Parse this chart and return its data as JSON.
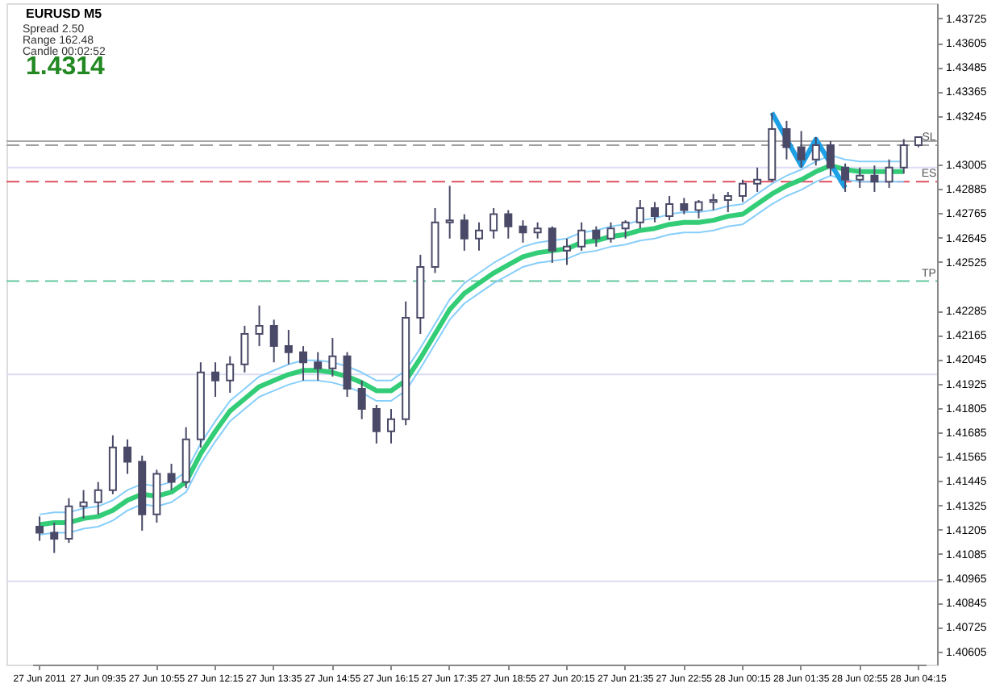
{
  "chart_data": {
    "type": "candlestick",
    "title": "EURUSD  M5",
    "annotations": [
      "Spread  2.50",
      "Range  162.48",
      "Candle  00:02:52",
      "1.4314"
    ],
    "categories": [
      "27 Jun 2011",
      null,
      null,
      null,
      "27 Jun 09:35",
      null,
      null,
      null,
      "27 Jun 10:55",
      null,
      null,
      null,
      "27 Jun 12:15",
      null,
      null,
      null,
      "27 Jun 13:35",
      null,
      null,
      null,
      "27 Jun 14:55",
      null,
      null,
      null,
      "27 Jun 16:15",
      null,
      null,
      null,
      "27 Jun 17:35",
      null,
      null,
      null,
      "27 Jun 18:55",
      null,
      null,
      null,
      "27 Jun 20:15",
      null,
      null,
      null,
      "27 Jun 21:35",
      null,
      null,
      null,
      "27 Jun 22:55",
      null,
      null,
      null,
      "28 Jun 00:15",
      null,
      null,
      null,
      "28 Jun 01:35",
      null,
      null,
      null,
      "28 Jun 02:55",
      null,
      null,
      null,
      "28 Jun 04:15"
    ],
    "series": [
      {
        "type": "candlestick",
        "color": "#4a4a68",
        "ohlc": [
          [
            1.4122,
            1.4127,
            1.4115,
            1.4119
          ],
          [
            1.4119,
            1.4124,
            1.4109,
            1.4116
          ],
          [
            1.4116,
            1.4136,
            1.4114,
            1.4132
          ],
          [
            1.4132,
            1.414,
            1.4126,
            1.4134
          ],
          [
            1.4134,
            1.4144,
            1.4128,
            1.414
          ],
          [
            1.414,
            1.4167,
            1.4138,
            1.4161
          ],
          [
            1.4161,
            1.4165,
            1.4148,
            1.4154
          ],
          [
            1.4154,
            1.4157,
            1.412,
            1.4128
          ],
          [
            1.4128,
            1.415,
            1.4124,
            1.4148
          ],
          [
            1.4148,
            1.4153,
            1.414,
            1.4144
          ],
          [
            1.4144,
            1.4171,
            1.4141,
            1.4165
          ],
          [
            1.4165,
            1.4203,
            1.4161,
            1.4198
          ],
          [
            1.4198,
            1.4203,
            1.4186,
            1.4194
          ],
          [
            1.4194,
            1.4206,
            1.4188,
            1.4202
          ],
          [
            1.4202,
            1.4221,
            1.4198,
            1.4217
          ],
          [
            1.4217,
            1.4231,
            1.4211,
            1.4221
          ],
          [
            1.4221,
            1.4224,
            1.4203,
            1.4211
          ],
          [
            1.4211,
            1.4219,
            1.4202,
            1.4208
          ],
          [
            1.4208,
            1.4211,
            1.4194,
            1.4203
          ],
          [
            1.4203,
            1.4208,
            1.4194,
            1.42
          ],
          [
            1.42,
            1.4215,
            1.4196,
            1.4206
          ],
          [
            1.4206,
            1.4208,
            1.4186,
            1.419
          ],
          [
            1.419,
            1.4194,
            1.4175,
            1.418
          ],
          [
            1.418,
            1.4182,
            1.4163,
            1.4169
          ],
          [
            1.4169,
            1.418,
            1.4163,
            1.4175
          ],
          [
            1.4175,
            1.4233,
            1.4172,
            1.4225
          ],
          [
            1.4225,
            1.4256,
            1.4217,
            1.425
          ],
          [
            1.425,
            1.4279,
            1.4247,
            1.4272
          ],
          [
            1.4272,
            1.429,
            1.4264,
            1.4273
          ],
          [
            1.4273,
            1.4276,
            1.4258,
            1.4264
          ],
          [
            1.4264,
            1.4272,
            1.4258,
            1.4268
          ],
          [
            1.4268,
            1.4279,
            1.4264,
            1.4276
          ],
          [
            1.4276,
            1.4278,
            1.4264,
            1.427
          ],
          [
            1.427,
            1.4273,
            1.4262,
            1.4267
          ],
          [
            1.4267,
            1.4272,
            1.4264,
            1.4269
          ],
          [
            1.4269,
            1.427,
            1.4252,
            1.4258
          ],
          [
            1.4258,
            1.4264,
            1.4251,
            1.426
          ],
          [
            1.426,
            1.4272,
            1.4258,
            1.4268
          ],
          [
            1.4268,
            1.427,
            1.426,
            1.4264
          ],
          [
            1.4264,
            1.4272,
            1.4262,
            1.4269
          ],
          [
            1.4269,
            1.4273,
            1.4264,
            1.4272
          ],
          [
            1.4272,
            1.4283,
            1.4269,
            1.4279
          ],
          [
            1.4279,
            1.4282,
            1.4272,
            1.4275
          ],
          [
            1.4275,
            1.4285,
            1.4273,
            1.4281
          ],
          [
            1.4281,
            1.4284,
            1.4276,
            1.4278
          ],
          [
            1.4278,
            1.4283,
            1.4274,
            1.4282
          ],
          [
            1.4282,
            1.4286,
            1.4278,
            1.4283
          ],
          [
            1.4283,
            1.4287,
            1.4277,
            1.4285
          ],
          [
            1.4285,
            1.4293,
            1.4282,
            1.4291
          ],
          [
            1.4291,
            1.4299,
            1.4287,
            1.4293
          ],
          [
            1.4293,
            1.4326,
            1.4292,
            1.4318
          ],
          [
            1.4318,
            1.4322,
            1.4303,
            1.4309
          ],
          [
            1.4309,
            1.4317,
            1.4299,
            1.4303
          ],
          [
            1.4303,
            1.4314,
            1.43,
            1.431
          ],
          [
            1.431,
            1.4312,
            1.4295,
            1.4299
          ],
          [
            1.4299,
            1.4301,
            1.4287,
            1.4293
          ],
          [
            1.4293,
            1.4299,
            1.4289,
            1.4295
          ],
          [
            1.4295,
            1.43,
            1.4287,
            1.4292
          ],
          [
            1.4292,
            1.4303,
            1.4289,
            1.4299
          ],
          [
            1.4299,
            1.4313,
            1.4296,
            1.431
          ],
          [
            1.431,
            1.4314,
            1.4309,
            1.4314
          ]
        ]
      },
      {
        "type": "line",
        "color": "#33cc77",
        "values": [
          1.4123,
          1.4124,
          1.4124,
          1.4126,
          1.4127,
          1.413,
          1.4135,
          1.4138,
          1.4137,
          1.4139,
          1.4144,
          1.4158,
          1.4169,
          1.4179,
          1.4185,
          1.4191,
          1.4194,
          1.4197,
          1.4199,
          1.4199,
          1.4198,
          1.4196,
          1.4193,
          1.4189,
          1.4189,
          1.4194,
          1.4205,
          1.4217,
          1.4229,
          1.4237,
          1.4242,
          1.4247,
          1.4251,
          1.4255,
          1.4257,
          1.4258,
          1.4259,
          1.4262,
          1.4263,
          1.4265,
          1.4266,
          1.4268,
          1.4269,
          1.4271,
          1.4272,
          1.4272,
          1.4273,
          1.4275,
          1.4276,
          1.4281,
          1.4286,
          1.429,
          1.4293,
          1.4297,
          1.43,
          1.4298,
          1.4297,
          1.4297,
          1.4297,
          1.4297,
          null
        ]
      },
      {
        "type": "line",
        "color": "#87cefa",
        "values": [
          1.4128,
          1.4129,
          1.4129,
          1.4131,
          1.4132,
          1.4135,
          1.414,
          1.4143,
          1.4142,
          1.4144,
          1.4149,
          1.4163,
          1.4174,
          1.4184,
          1.419,
          1.4196,
          1.4199,
          1.4202,
          1.4204,
          1.4204,
          1.4203,
          1.4201,
          1.4198,
          1.4194,
          1.4194,
          1.4199,
          1.421,
          1.4222,
          1.4234,
          1.4242,
          1.4247,
          1.4252,
          1.4256,
          1.426,
          1.4262,
          1.4263,
          1.4264,
          1.4267,
          1.4268,
          1.427,
          1.4271,
          1.4273,
          1.4274,
          1.4276,
          1.4277,
          1.4277,
          1.4278,
          1.428,
          1.4281,
          1.4286,
          1.4291,
          1.4295,
          1.4298,
          1.4302,
          1.4305,
          1.4303,
          1.4302,
          1.4302,
          1.4302,
          1.4302,
          null
        ]
      },
      {
        "type": "line",
        "color": "#87cefa",
        "values": [
          1.4118,
          1.4119,
          1.4119,
          1.4121,
          1.4122,
          1.4125,
          1.413,
          1.4133,
          1.4132,
          1.4134,
          1.4139,
          1.4153,
          1.4164,
          1.4174,
          1.418,
          1.4186,
          1.4189,
          1.4192,
          1.4194,
          1.4194,
          1.4193,
          1.4191,
          1.4188,
          1.4184,
          1.4184,
          1.4189,
          1.42,
          1.4212,
          1.4224,
          1.4232,
          1.4237,
          1.4242,
          1.4246,
          1.425,
          1.4252,
          1.4253,
          1.4254,
          1.4257,
          1.4258,
          1.426,
          1.4261,
          1.4263,
          1.4264,
          1.4266,
          1.4267,
          1.4267,
          1.4268,
          1.427,
          1.4271,
          1.4276,
          1.4281,
          1.4285,
          1.4288,
          1.4292,
          1.4295,
          1.4293,
          1.4292,
          1.4292,
          1.4292,
          1.4292,
          null
        ]
      },
      {
        "type": "line",
        "color": "#1ea0e6",
        "values": [
          null,
          null,
          null,
          null,
          null,
          null,
          null,
          null,
          null,
          null,
          null,
          null,
          null,
          null,
          null,
          null,
          null,
          null,
          null,
          null,
          null,
          null,
          null,
          null,
          null,
          null,
          null,
          null,
          null,
          null,
          null,
          null,
          null,
          null,
          null,
          null,
          null,
          null,
          null,
          null,
          null,
          null,
          null,
          null,
          null,
          null,
          null,
          null,
          null,
          null,
          1.4326,
          null,
          1.43,
          1.4313,
          null,
          1.4289,
          null,
          null,
          null,
          null,
          null
        ]
      }
    ],
    "ylim": [
      1.4054,
      1.438
    ],
    "yticks": [
      1.43725,
      1.43605,
      1.43485,
      1.43365,
      1.43245,
      1.43005,
      1.42885,
      1.42765,
      1.42645,
      1.42525,
      1.42285,
      1.42165,
      1.42045,
      1.41925,
      1.41805,
      1.41685,
      1.41565,
      1.41445,
      1.41325,
      1.41205,
      1.41085,
      1.40965,
      1.40845,
      1.40725,
      1.40605
    ],
    "ref_lines": [
      {
        "axis": "y",
        "value": 1.4312,
        "label": null,
        "color": "#a8a8a8",
        "line_style": "solid"
      },
      {
        "axis": "y",
        "value": 1.431,
        "label": "SL",
        "color": "#a0a0a0",
        "line_style": "dashed"
      },
      {
        "axis": "y",
        "value": 1.4299,
        "label": null,
        "color": "#dcdcf4",
        "line_style": "solid"
      },
      {
        "axis": "y",
        "value": 1.4292,
        "label": "ES",
        "color": "#e05060",
        "line_style": "dashed"
      },
      {
        "axis": "y",
        "value": 1.4243,
        "label": "TP",
        "color": "#66c8a0",
        "line_style": "dashed"
      },
      {
        "axis": "y",
        "value": 1.4197,
        "label": null,
        "color": "#dcdcf4",
        "line_style": "solid"
      },
      {
        "axis": "y",
        "value": 1.4095,
        "label": null,
        "color": "#dcdcf4",
        "line_style": "solid"
      }
    ],
    "grid": false
  }
}
